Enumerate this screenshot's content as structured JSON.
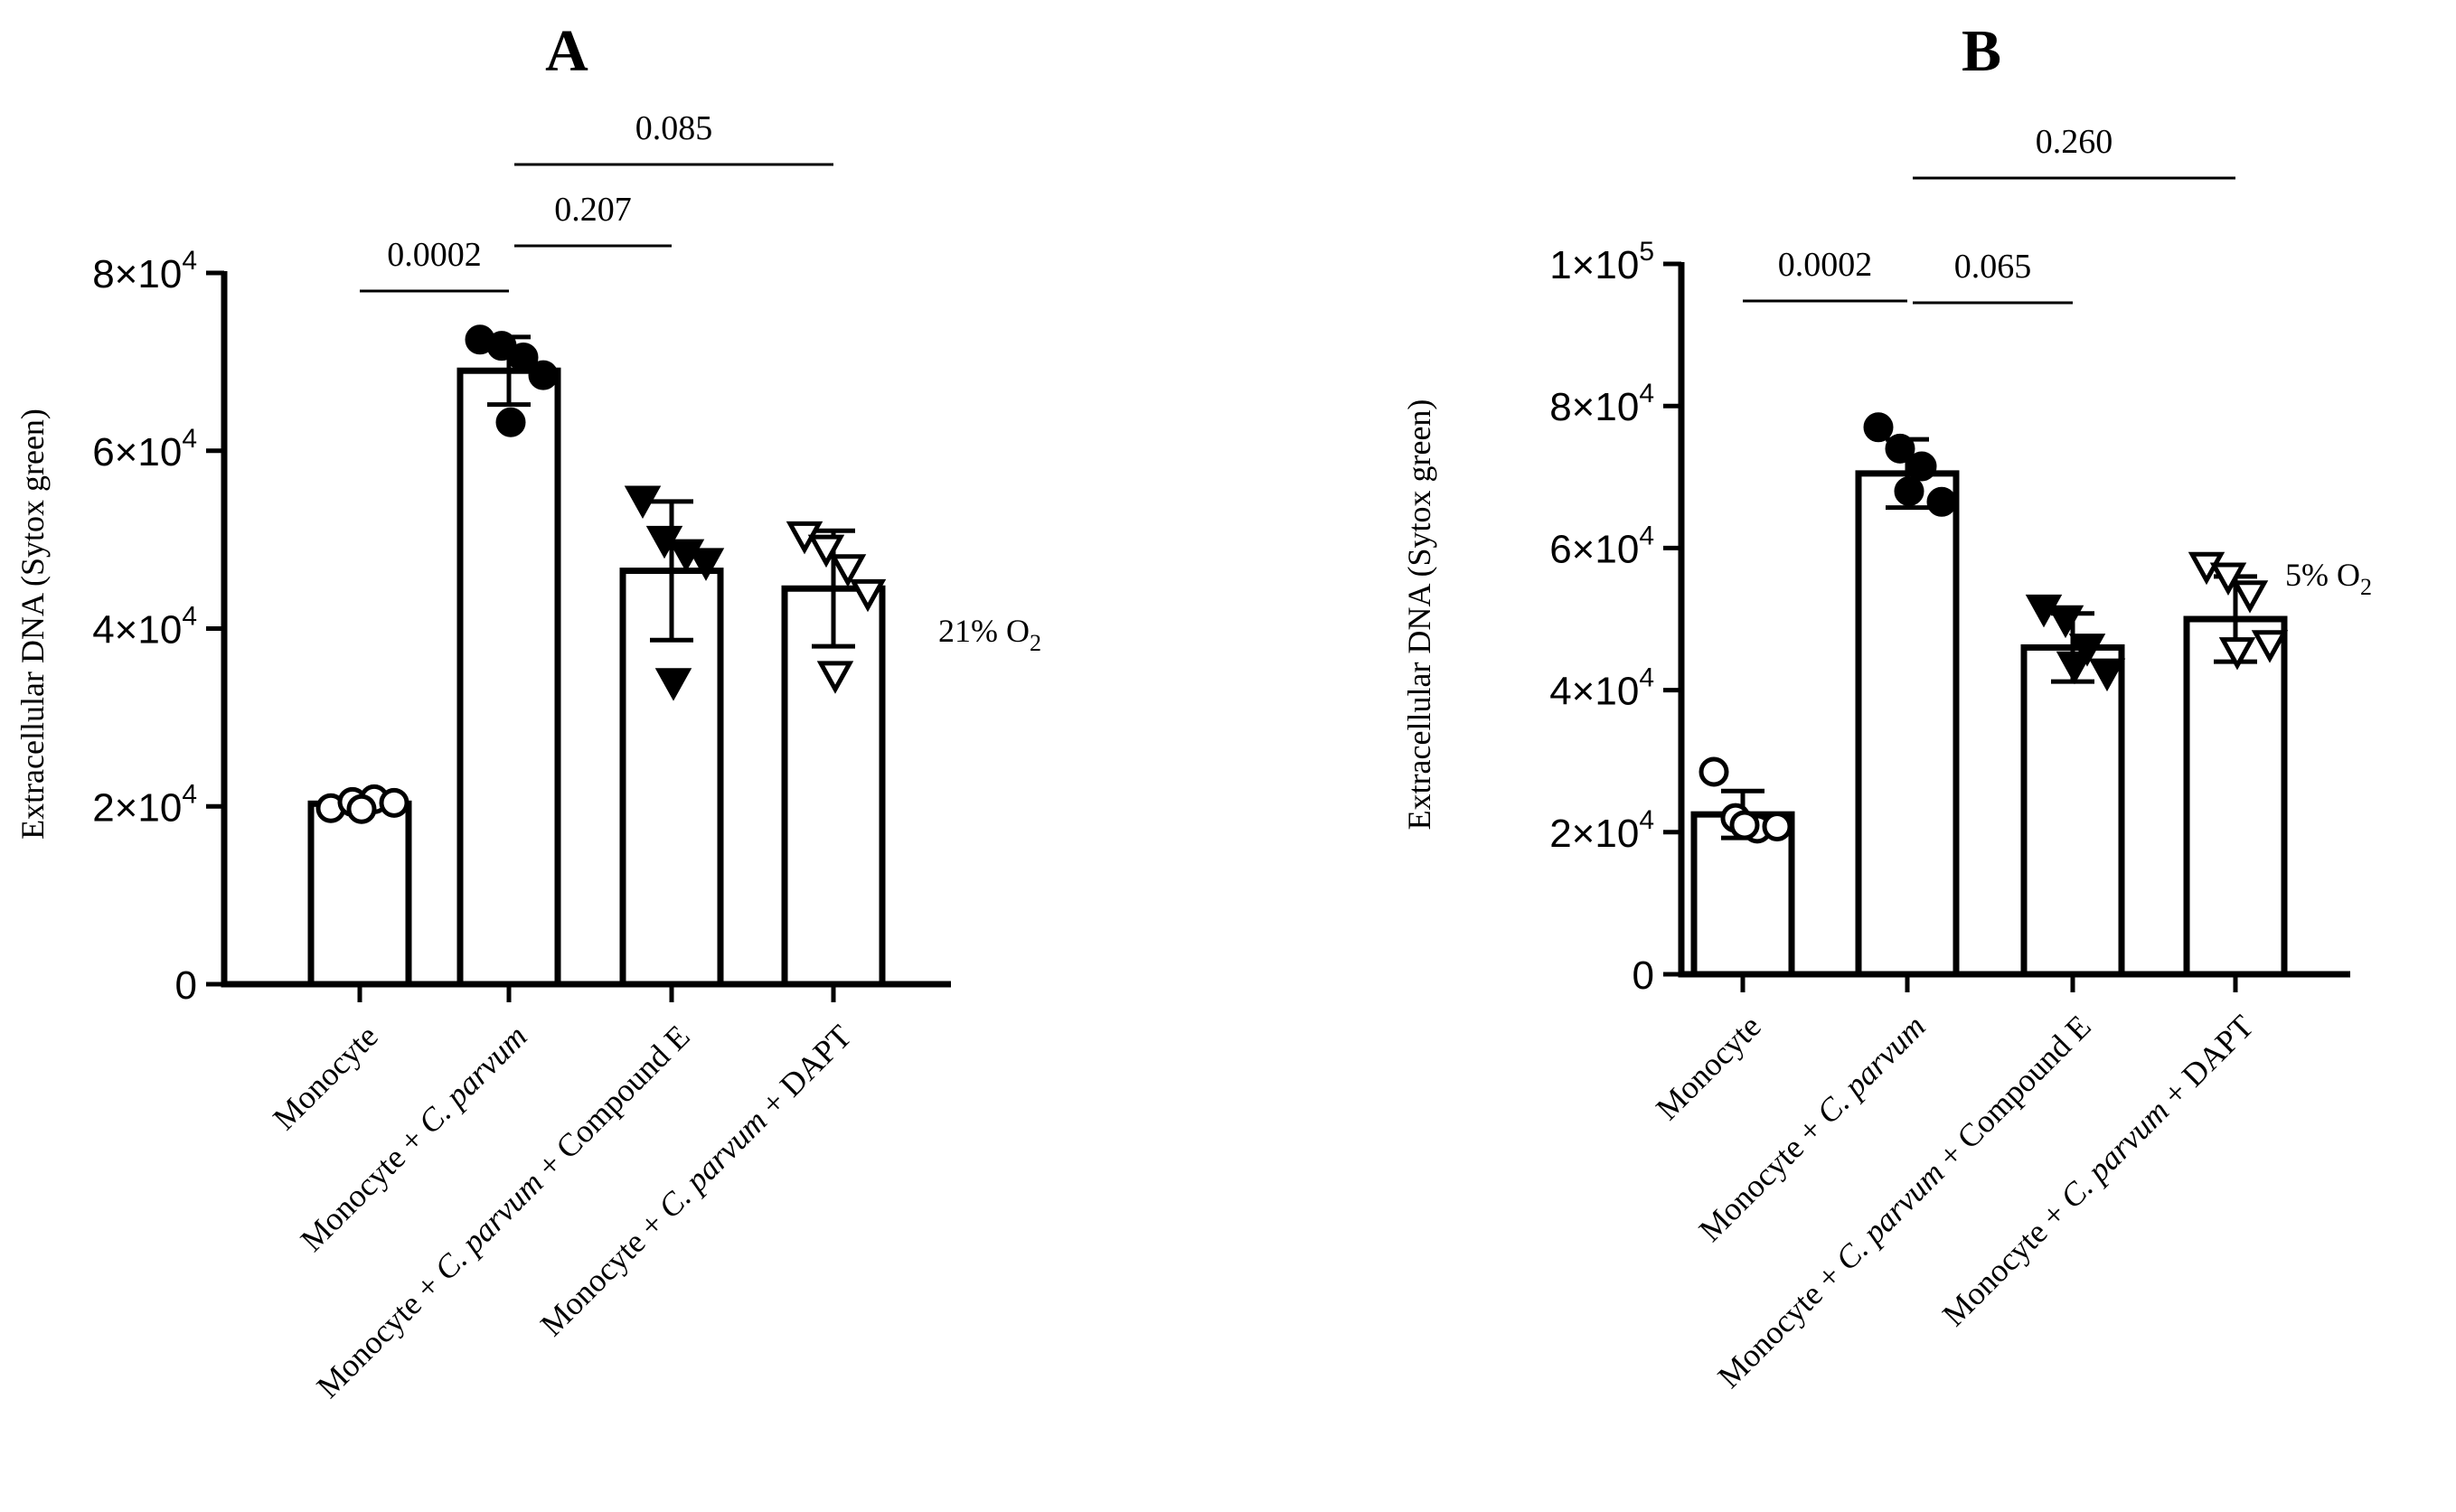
{
  "chart_data": [
    {
      "type": "bar",
      "panel_label": "A",
      "ylabel": "Extracellular DNA (Sytox green)",
      "condition": {
        "prefix": "21% O",
        "subscript": "2"
      },
      "ylim": [
        0,
        80000
      ],
      "yticks": [
        {
          "value": 0,
          "mantissa": "0",
          "exp": ""
        },
        {
          "value": 20000,
          "mantissa": "2×10",
          "exp": "4"
        },
        {
          "value": 40000,
          "mantissa": "4×10",
          "exp": "4"
        },
        {
          "value": 60000,
          "mantissa": "6×10",
          "exp": "4"
        },
        {
          "value": 80000,
          "mantissa": "8×10",
          "exp": "4"
        }
      ],
      "categories": [
        {
          "parts": [
            {
              "t": "Monocyte",
              "i": false
            }
          ]
        },
        {
          "parts": [
            {
              "t": "Monocyte + ",
              "i": false
            },
            {
              "t": "C. parvum",
              "i": true
            }
          ]
        },
        {
          "parts": [
            {
              "t": "Monocyte + ",
              "i": false
            },
            {
              "t": "C. parvum",
              "i": true
            },
            {
              "t": " + Compound E",
              "i": false
            }
          ]
        },
        {
          "parts": [
            {
              "t": "Monocyte + ",
              "i": false
            },
            {
              "t": "C. parvum",
              "i": true
            },
            {
              "t": " + DAPT",
              "i": false
            }
          ]
        }
      ],
      "series": [
        {
          "name": "Monocyte",
          "marker": "circle-open",
          "mean": 20300,
          "sd": 600,
          "points": [
            19800,
            20500,
            20800,
            20400,
            19700
          ]
        },
        {
          "name": "Monocyte + C. parvum",
          "marker": "circle-filled",
          "mean": 69000,
          "sd": 3800,
          "points": [
            72500,
            71800,
            70500,
            68500,
            63200
          ]
        },
        {
          "name": "Monocyte + C. parvum + Compound E",
          "marker": "triangle-down-filled",
          "mean": 46500,
          "sd": 7800,
          "points": [
            54500,
            50000,
            48500,
            47500,
            34000
          ]
        },
        {
          "name": "Monocyte + C. parvum + DAPT",
          "marker": "triangle-down-open",
          "mean": 44500,
          "sd": 6500,
          "points": [
            50500,
            49000,
            46800,
            44000,
            34800
          ]
        }
      ],
      "comparisons": [
        {
          "from": 0,
          "to": 1,
          "label": "0.0002",
          "tier": 1
        },
        {
          "from": 1,
          "to": 2,
          "label": "0.207",
          "tier": 2
        },
        {
          "from": 1,
          "to": 3,
          "label": "0.085",
          "tier": 3
        }
      ]
    },
    {
      "type": "bar",
      "panel_label": "B",
      "ylabel": "Extracellular DNA (Sytox green)",
      "condition": {
        "prefix": "5% O",
        "subscript": "2"
      },
      "ylim": [
        0,
        100000
      ],
      "yticks": [
        {
          "value": 0,
          "mantissa": "0",
          "exp": ""
        },
        {
          "value": 20000,
          "mantissa": "2×10",
          "exp": "4"
        },
        {
          "value": 40000,
          "mantissa": "4×10",
          "exp": "4"
        },
        {
          "value": 60000,
          "mantissa": "6×10",
          "exp": "4"
        },
        {
          "value": 80000,
          "mantissa": "8×10",
          "exp": "4"
        },
        {
          "value": 100000,
          "mantissa": "1×10",
          "exp": "5"
        }
      ],
      "categories": [
        {
          "parts": [
            {
              "t": "Monocyte",
              "i": false
            }
          ]
        },
        {
          "parts": [
            {
              "t": "Monocyte + ",
              "i": false
            },
            {
              "t": "C. parvum",
              "i": true
            }
          ]
        },
        {
          "parts": [
            {
              "t": "Monocyte + ",
              "i": false
            },
            {
              "t": "C. parvum",
              "i": true
            },
            {
              "t": " + Compound E",
              "i": false
            }
          ]
        },
        {
          "parts": [
            {
              "t": "Monocyte + ",
              "i": false
            },
            {
              "t": "C. parvum",
              "i": true
            },
            {
              "t": " + DAPT",
              "i": false
            }
          ]
        }
      ],
      "series": [
        {
          "name": "Monocyte",
          "marker": "circle-open",
          "mean": 22500,
          "sd": 3300,
          "points": [
            28500,
            22000,
            20500,
            20800,
            21000
          ]
        },
        {
          "name": "Monocyte + C. parvum",
          "marker": "circle-filled",
          "mean": 70500,
          "sd": 4800,
          "points": [
            77000,
            74000,
            71500,
            66500,
            68000
          ]
        },
        {
          "name": "Monocyte + C. parvum + Compound E",
          "marker": "triangle-down-filled",
          "mean": 46000,
          "sd": 4800,
          "points": [
            51500,
            50000,
            46000,
            42500,
            43500
          ]
        },
        {
          "name": "Monocyte + C. parvum + DAPT",
          "marker": "triangle-down-open",
          "mean": 50000,
          "sd": 6000,
          "points": [
            57500,
            56000,
            53500,
            46500,
            45500
          ]
        }
      ],
      "comparisons": [
        {
          "from": 0,
          "to": 1,
          "label": "0.0002",
          "tier": 1
        },
        {
          "from": 1,
          "to": 2,
          "label": "0.065",
          "tier": 2
        },
        {
          "from": 1,
          "to": 3,
          "label": "0.260",
          "tier": 3
        }
      ]
    }
  ]
}
